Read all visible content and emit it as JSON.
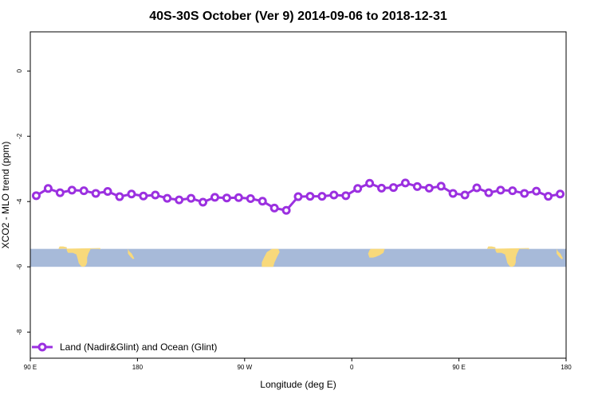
{
  "chart_data": {
    "type": "line",
    "title": "40S-30S October (Ver 9)   2014-09-06 to 2018-12-31",
    "xlabel": "Longitude (deg E)",
    "ylabel": "XCO2 - MLO trend (ppm)",
    "x_ticks": [
      {
        "value": 90,
        "label": "90 E"
      },
      {
        "value": 180,
        "label": "180"
      },
      {
        "value": 270,
        "label": "90 W"
      },
      {
        "value": 360,
        "label": "0"
      },
      {
        "value": 450,
        "label": "90 E"
      },
      {
        "value": 540,
        "label": "180"
      }
    ],
    "y_ticks": [
      {
        "value": 0,
        "label": "0"
      },
      {
        "value": -2,
        "label": "-2"
      },
      {
        "value": -4,
        "label": "-4"
      },
      {
        "value": -6,
        "label": "-6"
      },
      {
        "value": -8,
        "label": "-8"
      }
    ],
    "xlim": [
      90,
      540
    ],
    "ylim": [
      -8.8,
      1.2
    ],
    "grid": false,
    "legend_position": "bottom-left",
    "map_strip": {
      "y_range": [
        -6.0,
        -5.45
      ],
      "ocean_color": "#a7bad9",
      "land_color": "#f8d97b"
    },
    "series": [
      {
        "name": "Land (Nadir&Glint) and Ocean (Glint)",
        "color": "#9b30e0",
        "x": [
          95,
          105,
          115,
          125,
          135,
          145,
          155,
          165,
          175,
          185,
          195,
          205,
          215,
          225,
          235,
          245,
          255,
          265,
          275,
          285,
          295,
          305,
          315,
          325,
          335,
          345,
          355,
          365,
          375,
          385,
          395,
          405,
          415,
          425,
          435,
          445,
          455,
          465,
          475,
          485,
          495,
          505,
          515,
          525,
          535
        ],
        "y": [
          -3.82,
          -3.6,
          -3.73,
          -3.65,
          -3.67,
          -3.75,
          -3.69,
          -3.85,
          -3.77,
          -3.83,
          -3.8,
          -3.9,
          -3.95,
          -3.9,
          -4.02,
          -3.87,
          -3.89,
          -3.88,
          -3.91,
          -3.99,
          -4.2,
          -4.27,
          -3.85,
          -3.84,
          -3.84,
          -3.8,
          -3.82,
          -3.6,
          -3.44,
          -3.59,
          -3.57,
          -3.43,
          -3.54,
          -3.59,
          -3.53,
          -3.75,
          -3.8,
          -3.58,
          -3.73,
          -3.65,
          -3.67,
          -3.75,
          -3.68,
          -3.84,
          -3.77
        ]
      }
    ]
  }
}
